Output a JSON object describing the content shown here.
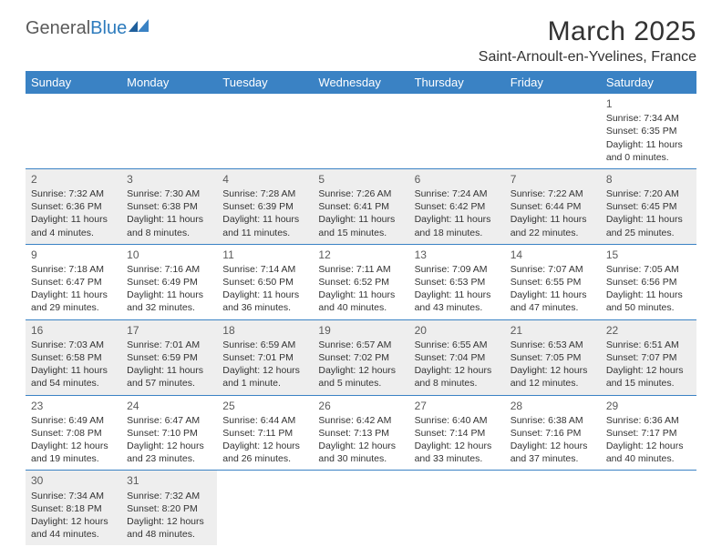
{
  "logo": {
    "part1": "General",
    "part2": "Blue"
  },
  "title": "March 2025",
  "location": "Saint-Arnoult-en-Yvelines, France",
  "colors": {
    "header_bg": "#3a82c4",
    "header_fg": "#ffffff",
    "row_alt_bg": "#eeeeee",
    "logo_blue": "#2d7bbd",
    "logo_gray": "#5a5a5a"
  },
  "days_of_week": [
    "Sunday",
    "Monday",
    "Tuesday",
    "Wednesday",
    "Thursday",
    "Friday",
    "Saturday"
  ],
  "weeks": [
    {
      "shade": "white",
      "cells": [
        null,
        null,
        null,
        null,
        null,
        null,
        {
          "day": "1",
          "sunrise": "Sunrise: 7:34 AM",
          "sunset": "Sunset: 6:35 PM",
          "daylight1": "Daylight: 11 hours",
          "daylight2": "and 0 minutes."
        }
      ]
    },
    {
      "shade": "gray",
      "cells": [
        {
          "day": "2",
          "sunrise": "Sunrise: 7:32 AM",
          "sunset": "Sunset: 6:36 PM",
          "daylight1": "Daylight: 11 hours",
          "daylight2": "and 4 minutes."
        },
        {
          "day": "3",
          "sunrise": "Sunrise: 7:30 AM",
          "sunset": "Sunset: 6:38 PM",
          "daylight1": "Daylight: 11 hours",
          "daylight2": "and 8 minutes."
        },
        {
          "day": "4",
          "sunrise": "Sunrise: 7:28 AM",
          "sunset": "Sunset: 6:39 PM",
          "daylight1": "Daylight: 11 hours",
          "daylight2": "and 11 minutes."
        },
        {
          "day": "5",
          "sunrise": "Sunrise: 7:26 AM",
          "sunset": "Sunset: 6:41 PM",
          "daylight1": "Daylight: 11 hours",
          "daylight2": "and 15 minutes."
        },
        {
          "day": "6",
          "sunrise": "Sunrise: 7:24 AM",
          "sunset": "Sunset: 6:42 PM",
          "daylight1": "Daylight: 11 hours",
          "daylight2": "and 18 minutes."
        },
        {
          "day": "7",
          "sunrise": "Sunrise: 7:22 AM",
          "sunset": "Sunset: 6:44 PM",
          "daylight1": "Daylight: 11 hours",
          "daylight2": "and 22 minutes."
        },
        {
          "day": "8",
          "sunrise": "Sunrise: 7:20 AM",
          "sunset": "Sunset: 6:45 PM",
          "daylight1": "Daylight: 11 hours",
          "daylight2": "and 25 minutes."
        }
      ]
    },
    {
      "shade": "white",
      "cells": [
        {
          "day": "9",
          "sunrise": "Sunrise: 7:18 AM",
          "sunset": "Sunset: 6:47 PM",
          "daylight1": "Daylight: 11 hours",
          "daylight2": "and 29 minutes."
        },
        {
          "day": "10",
          "sunrise": "Sunrise: 7:16 AM",
          "sunset": "Sunset: 6:49 PM",
          "daylight1": "Daylight: 11 hours",
          "daylight2": "and 32 minutes."
        },
        {
          "day": "11",
          "sunrise": "Sunrise: 7:14 AM",
          "sunset": "Sunset: 6:50 PM",
          "daylight1": "Daylight: 11 hours",
          "daylight2": "and 36 minutes."
        },
        {
          "day": "12",
          "sunrise": "Sunrise: 7:11 AM",
          "sunset": "Sunset: 6:52 PM",
          "daylight1": "Daylight: 11 hours",
          "daylight2": "and 40 minutes."
        },
        {
          "day": "13",
          "sunrise": "Sunrise: 7:09 AM",
          "sunset": "Sunset: 6:53 PM",
          "daylight1": "Daylight: 11 hours",
          "daylight2": "and 43 minutes."
        },
        {
          "day": "14",
          "sunrise": "Sunrise: 7:07 AM",
          "sunset": "Sunset: 6:55 PM",
          "daylight1": "Daylight: 11 hours",
          "daylight2": "and 47 minutes."
        },
        {
          "day": "15",
          "sunrise": "Sunrise: 7:05 AM",
          "sunset": "Sunset: 6:56 PM",
          "daylight1": "Daylight: 11 hours",
          "daylight2": "and 50 minutes."
        }
      ]
    },
    {
      "shade": "gray",
      "cells": [
        {
          "day": "16",
          "sunrise": "Sunrise: 7:03 AM",
          "sunset": "Sunset: 6:58 PM",
          "daylight1": "Daylight: 11 hours",
          "daylight2": "and 54 minutes."
        },
        {
          "day": "17",
          "sunrise": "Sunrise: 7:01 AM",
          "sunset": "Sunset: 6:59 PM",
          "daylight1": "Daylight: 11 hours",
          "daylight2": "and 57 minutes."
        },
        {
          "day": "18",
          "sunrise": "Sunrise: 6:59 AM",
          "sunset": "Sunset: 7:01 PM",
          "daylight1": "Daylight: 12 hours",
          "daylight2": "and 1 minute."
        },
        {
          "day": "19",
          "sunrise": "Sunrise: 6:57 AM",
          "sunset": "Sunset: 7:02 PM",
          "daylight1": "Daylight: 12 hours",
          "daylight2": "and 5 minutes."
        },
        {
          "day": "20",
          "sunrise": "Sunrise: 6:55 AM",
          "sunset": "Sunset: 7:04 PM",
          "daylight1": "Daylight: 12 hours",
          "daylight2": "and 8 minutes."
        },
        {
          "day": "21",
          "sunrise": "Sunrise: 6:53 AM",
          "sunset": "Sunset: 7:05 PM",
          "daylight1": "Daylight: 12 hours",
          "daylight2": "and 12 minutes."
        },
        {
          "day": "22",
          "sunrise": "Sunrise: 6:51 AM",
          "sunset": "Sunset: 7:07 PM",
          "daylight1": "Daylight: 12 hours",
          "daylight2": "and 15 minutes."
        }
      ]
    },
    {
      "shade": "white",
      "cells": [
        {
          "day": "23",
          "sunrise": "Sunrise: 6:49 AM",
          "sunset": "Sunset: 7:08 PM",
          "daylight1": "Daylight: 12 hours",
          "daylight2": "and 19 minutes."
        },
        {
          "day": "24",
          "sunrise": "Sunrise: 6:47 AM",
          "sunset": "Sunset: 7:10 PM",
          "daylight1": "Daylight: 12 hours",
          "daylight2": "and 23 minutes."
        },
        {
          "day": "25",
          "sunrise": "Sunrise: 6:44 AM",
          "sunset": "Sunset: 7:11 PM",
          "daylight1": "Daylight: 12 hours",
          "daylight2": "and 26 minutes."
        },
        {
          "day": "26",
          "sunrise": "Sunrise: 6:42 AM",
          "sunset": "Sunset: 7:13 PM",
          "daylight1": "Daylight: 12 hours",
          "daylight2": "and 30 minutes."
        },
        {
          "day": "27",
          "sunrise": "Sunrise: 6:40 AM",
          "sunset": "Sunset: 7:14 PM",
          "daylight1": "Daylight: 12 hours",
          "daylight2": "and 33 minutes."
        },
        {
          "day": "28",
          "sunrise": "Sunrise: 6:38 AM",
          "sunset": "Sunset: 7:16 PM",
          "daylight1": "Daylight: 12 hours",
          "daylight2": "and 37 minutes."
        },
        {
          "day": "29",
          "sunrise": "Sunrise: 6:36 AM",
          "sunset": "Sunset: 7:17 PM",
          "daylight1": "Daylight: 12 hours",
          "daylight2": "and 40 minutes."
        }
      ]
    },
    {
      "shade": "gray",
      "cells": [
        {
          "day": "30",
          "sunrise": "Sunrise: 7:34 AM",
          "sunset": "Sunset: 8:18 PM",
          "daylight1": "Daylight: 12 hours",
          "daylight2": "and 44 minutes."
        },
        {
          "day": "31",
          "sunrise": "Sunrise: 7:32 AM",
          "sunset": "Sunset: 8:20 PM",
          "daylight1": "Daylight: 12 hours",
          "daylight2": "and 48 minutes."
        },
        null,
        null,
        null,
        null,
        null
      ]
    }
  ]
}
